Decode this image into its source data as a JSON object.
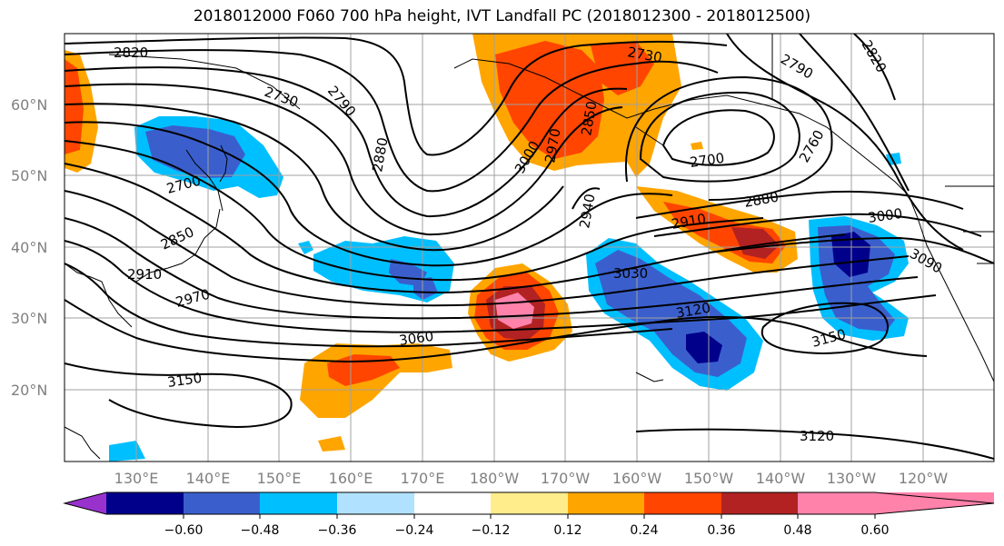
{
  "title": "2018012000 F060 700 hPa height, IVT Landfall PC (2018012300 - 2018012500)",
  "map": {
    "lat_labels": [
      "60°N",
      "50°N",
      "40°N",
      "30°N",
      "20°N"
    ],
    "lon_labels": [
      "130°E",
      "140°E",
      "150°E",
      "160°E",
      "170°E",
      "180°W",
      "170°W",
      "160°W",
      "150°W",
      "140°W",
      "130°W",
      "120°W"
    ],
    "contour_labels": [
      "2820",
      "2730",
      "2790",
      "2880",
      "2700",
      "2850",
      "2910",
      "2970",
      "3060",
      "3150",
      "3000",
      "2970",
      "2850",
      "2730",
      "2790",
      "2820",
      "2760",
      "2700",
      "2880",
      "2910",
      "2940",
      "3000",
      "3030",
      "3090",
      "3120",
      "3150",
      "3120"
    ]
  },
  "colorbar": {
    "levels": [
      "−0.60",
      "−0.48",
      "−0.36",
      "−0.24",
      "−0.12",
      "0.12",
      "0.24",
      "0.36",
      "0.48",
      "0.60"
    ],
    "colors": [
      "#9932cc",
      "#00008b",
      "#3a5fcd",
      "#00bfff",
      "#b0e2ff",
      "#ffffff",
      "#ffec8b",
      "#ffa500",
      "#ff4500",
      "#b22222",
      "#ff82ab"
    ]
  }
}
